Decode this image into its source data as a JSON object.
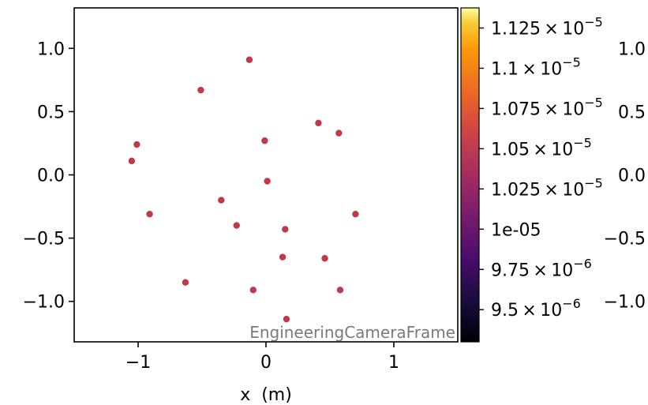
{
  "chart_data": {
    "type": "scatter",
    "title": "",
    "xlabel": "x  (m)",
    "ylabel": "",
    "xlim": [
      -1.5,
      1.5
    ],
    "ylim": [
      -1.32,
      1.32
    ],
    "x_ticks": [
      -1,
      0,
      1
    ],
    "x_tick_labels": [
      "−1",
      "0",
      "1"
    ],
    "y_ticks": [
      1.0,
      0.5,
      0.0,
      -0.5,
      -1.0
    ],
    "y_tick_labels": [
      "1.0",
      "0.5",
      "0.0",
      "−0.5",
      "−1.0"
    ],
    "right_y_tick_labels": [
      "1.0",
      "0.5",
      "0.0",
      "−0.5",
      "−1.0"
    ],
    "grid": false,
    "marker_color": "#c0394b",
    "series": [
      {
        "x": [
          -0.13,
          -0.51,
          0.41,
          0.57,
          -1.01,
          -0.01,
          -1.05,
          0.01,
          -0.35,
          -0.91,
          0.7,
          -0.23,
          0.15,
          0.13,
          0.46,
          -0.63,
          -0.1,
          0.58,
          0.16
        ],
        "y": [
          0.91,
          0.67,
          0.41,
          0.33,
          0.24,
          0.27,
          0.11,
          -0.05,
          -0.2,
          -0.31,
          -0.31,
          -0.4,
          -0.43,
          -0.65,
          -0.66,
          -0.85,
          -0.91,
          -0.91,
          -1.14
        ]
      }
    ],
    "colorbar": {
      "colormap": "inferno",
      "min": 9.3e-06,
      "max": 1.1375e-05,
      "ticks": [
        {
          "value": 1.125e-05,
          "mantissa": "1.125",
          "exp": "−5"
        },
        {
          "value": 1.1e-05,
          "mantissa": "1.1",
          "exp": "−5"
        },
        {
          "value": 1.075e-05,
          "mantissa": "1.075",
          "exp": "−5"
        },
        {
          "value": 1.05e-05,
          "mantissa": "1.05",
          "exp": "−5"
        },
        {
          "value": 1.025e-05,
          "mantissa": "1.025",
          "exp": "−5"
        },
        {
          "value": 1e-05,
          "label": "1e-05"
        },
        {
          "value": 9.75e-06,
          "mantissa": "9.75",
          "exp": "−6"
        },
        {
          "value": 9.5e-06,
          "mantissa": "9.5",
          "exp": "−6"
        }
      ]
    },
    "annotation": "EngineeringCameraFrame"
  }
}
